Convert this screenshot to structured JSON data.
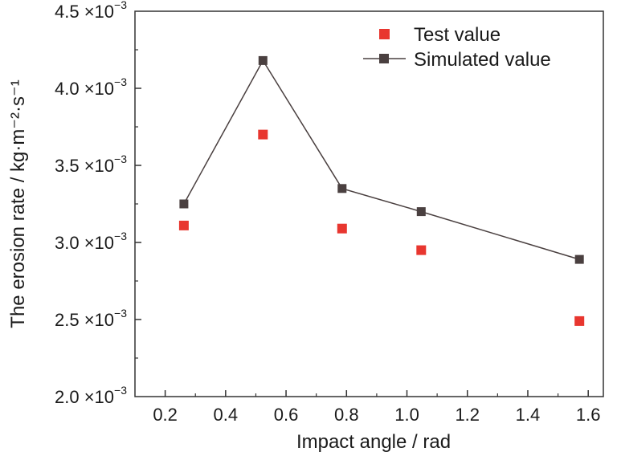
{
  "chart_data": {
    "type": "scatter",
    "xlabel": "Impact angle / rad",
    "ylabel": "The erosion rate / kg·m⁻²·s⁻¹",
    "xlim": [
      0.1,
      1.65
    ],
    "ylim": [
      0.002,
      0.0045
    ],
    "xticks": [
      0.2,
      0.4,
      0.6,
      0.8,
      1.0,
      1.2,
      1.4,
      1.6
    ],
    "xtick_labels": [
      "0.2",
      "0.4",
      "0.6",
      "0.8",
      "1.0",
      "1.2",
      "1.4",
      "1.6"
    ],
    "yticks": [
      0.002,
      0.0025,
      0.003,
      0.0035,
      0.004,
      0.0045
    ],
    "ytick_mantissas": [
      "2.0",
      "2.5",
      "3.0",
      "3.5",
      "4.0",
      "4.5"
    ],
    "ytick_multiplier": "×10",
    "ytick_exponent": "−3",
    "grid": false,
    "legend_position": "top-right",
    "series": [
      {
        "name": "Test value",
        "style": "markers",
        "color": "#e8362f",
        "x": [
          0.2618,
          0.5236,
          0.7854,
          1.0472,
          1.5708
        ],
        "y": [
          0.00311,
          0.0037,
          0.00309,
          0.00295,
          0.00249
        ]
      },
      {
        "name": "Simulated value",
        "style": "line+markers",
        "color": "#4a4040",
        "x": [
          0.2618,
          0.5236,
          0.7854,
          1.0472,
          1.5708
        ],
        "y": [
          0.00325,
          0.00418,
          0.00335,
          0.0032,
          0.00289
        ]
      }
    ]
  }
}
